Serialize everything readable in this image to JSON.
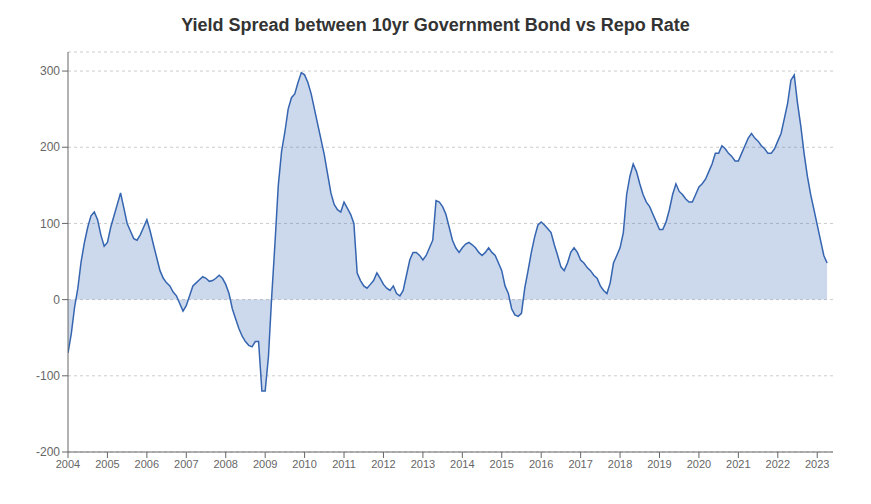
{
  "chart_data": {
    "type": "area",
    "title": "Yield Spread between 10yr Government Bond vs Repo Rate",
    "color": "#3565b0",
    "grid": true,
    "xlim": [
      2004,
      2023.4
    ],
    "xticks": [
      2004,
      2005,
      2006,
      2007,
      2008,
      2009,
      2010,
      2011,
      2012,
      2013,
      2014,
      2015,
      2016,
      2017,
      2018,
      2019,
      2020,
      2021,
      2022,
      2023
    ],
    "ylim": [
      -200,
      325
    ],
    "yticks": [
      -200,
      -100,
      0,
      100,
      200,
      300
    ],
    "x": [
      2004.0,
      2004.083,
      2004.167,
      2004.25,
      2004.333,
      2004.417,
      2004.5,
      2004.583,
      2004.667,
      2004.75,
      2004.833,
      2004.917,
      2005.0,
      2005.083,
      2005.167,
      2005.25,
      2005.333,
      2005.417,
      2005.5,
      2005.583,
      2005.667,
      2005.75,
      2005.833,
      2005.917,
      2006.0,
      2006.083,
      2006.167,
      2006.25,
      2006.333,
      2006.417,
      2006.5,
      2006.583,
      2006.667,
      2006.75,
      2006.833,
      2006.917,
      2007.0,
      2007.083,
      2007.167,
      2007.25,
      2007.333,
      2007.417,
      2007.5,
      2007.583,
      2007.667,
      2007.75,
      2007.833,
      2007.917,
      2008.0,
      2008.083,
      2008.167,
      2008.25,
      2008.333,
      2008.417,
      2008.5,
      2008.583,
      2008.667,
      2008.75,
      2008.833,
      2008.917,
      2009.0,
      2009.083,
      2009.167,
      2009.25,
      2009.333,
      2009.417,
      2009.5,
      2009.583,
      2009.667,
      2009.75,
      2009.833,
      2009.917,
      2010.0,
      2010.083,
      2010.167,
      2010.25,
      2010.333,
      2010.417,
      2010.5,
      2010.583,
      2010.667,
      2010.75,
      2010.833,
      2010.917,
      2011.0,
      2011.083,
      2011.167,
      2011.25,
      2011.333,
      2011.417,
      2011.5,
      2011.583,
      2011.667,
      2011.75,
      2011.833,
      2011.917,
      2012.0,
      2012.083,
      2012.167,
      2012.25,
      2012.333,
      2012.417,
      2012.5,
      2012.583,
      2012.667,
      2012.75,
      2012.833,
      2012.917,
      2013.0,
      2013.083,
      2013.167,
      2013.25,
      2013.333,
      2013.417,
      2013.5,
      2013.583,
      2013.667,
      2013.75,
      2013.833,
      2013.917,
      2014.0,
      2014.083,
      2014.167,
      2014.25,
      2014.333,
      2014.417,
      2014.5,
      2014.583,
      2014.667,
      2014.75,
      2014.833,
      2014.917,
      2015.0,
      2015.083,
      2015.167,
      2015.25,
      2015.333,
      2015.417,
      2015.5,
      2015.583,
      2015.667,
      2015.75,
      2015.833,
      2015.917,
      2016.0,
      2016.083,
      2016.167,
      2016.25,
      2016.333,
      2016.417,
      2016.5,
      2016.583,
      2016.667,
      2016.75,
      2016.833,
      2016.917,
      2017.0,
      2017.083,
      2017.167,
      2017.25,
      2017.333,
      2017.417,
      2017.5,
      2017.583,
      2017.667,
      2017.75,
      2017.833,
      2017.917,
      2018.0,
      2018.083,
      2018.167,
      2018.25,
      2018.333,
      2018.417,
      2018.5,
      2018.583,
      2018.667,
      2018.75,
      2018.833,
      2018.917,
      2019.0,
      2019.083,
      2019.167,
      2019.25,
      2019.333,
      2019.417,
      2019.5,
      2019.583,
      2019.667,
      2019.75,
      2019.833,
      2019.917,
      2020.0,
      2020.083,
      2020.167,
      2020.25,
      2020.333,
      2020.417,
      2020.5,
      2020.583,
      2020.667,
      2020.75,
      2020.833,
      2020.917,
      2021.0,
      2021.083,
      2021.167,
      2021.25,
      2021.333,
      2021.417,
      2021.5,
      2021.583,
      2021.667,
      2021.75,
      2021.833,
      2021.917,
      2022.0,
      2022.083,
      2022.167,
      2022.25,
      2022.333,
      2022.417,
      2022.5,
      2022.583,
      2022.667,
      2022.75,
      2022.833,
      2022.917,
      2023.0,
      2023.083,
      2023.167,
      2023.25
    ],
    "values": [
      -70,
      -45,
      -10,
      15,
      50,
      75,
      95,
      110,
      115,
      105,
      85,
      70,
      75,
      95,
      110,
      125,
      140,
      120,
      100,
      90,
      80,
      78,
      85,
      95,
      105,
      90,
      72,
      55,
      38,
      28,
      22,
      18,
      10,
      5,
      -5,
      -15,
      -8,
      5,
      18,
      22,
      26,
      30,
      28,
      24,
      25,
      28,
      32,
      28,
      20,
      8,
      -12,
      -25,
      -38,
      -48,
      -55,
      -60,
      -62,
      -55,
      -55,
      -120,
      -120,
      -75,
      5,
      75,
      150,
      195,
      220,
      250,
      265,
      270,
      285,
      298,
      295,
      285,
      270,
      250,
      230,
      210,
      190,
      165,
      140,
      125,
      118,
      115,
      128,
      120,
      112,
      100,
      35,
      25,
      18,
      15,
      20,
      25,
      35,
      28,
      20,
      15,
      12,
      18,
      8,
      5,
      12,
      32,
      52,
      62,
      62,
      58,
      52,
      58,
      68,
      78,
      130,
      128,
      122,
      112,
      95,
      78,
      68,
      62,
      68,
      73,
      75,
      72,
      68,
      62,
      58,
      62,
      68,
      62,
      58,
      48,
      38,
      18,
      8,
      -12,
      -20,
      -22,
      -18,
      15,
      38,
      62,
      82,
      98,
      102,
      98,
      93,
      88,
      72,
      58,
      43,
      38,
      48,
      62,
      68,
      62,
      52,
      48,
      42,
      38,
      32,
      28,
      18,
      12,
      8,
      22,
      48,
      58,
      68,
      88,
      138,
      162,
      178,
      168,
      152,
      138,
      128,
      122,
      112,
      102,
      92,
      92,
      102,
      118,
      138,
      152,
      142,
      138,
      132,
      128,
      128,
      138,
      148,
      152,
      158,
      168,
      178,
      192,
      192,
      202,
      198,
      192,
      188,
      182,
      182,
      192,
      202,
      212,
      218,
      212,
      208,
      202,
      198,
      192,
      192,
      198,
      208,
      218,
      238,
      258,
      288,
      295,
      258,
      228,
      192,
      162,
      138,
      118,
      98,
      78,
      58,
      48
    ]
  }
}
